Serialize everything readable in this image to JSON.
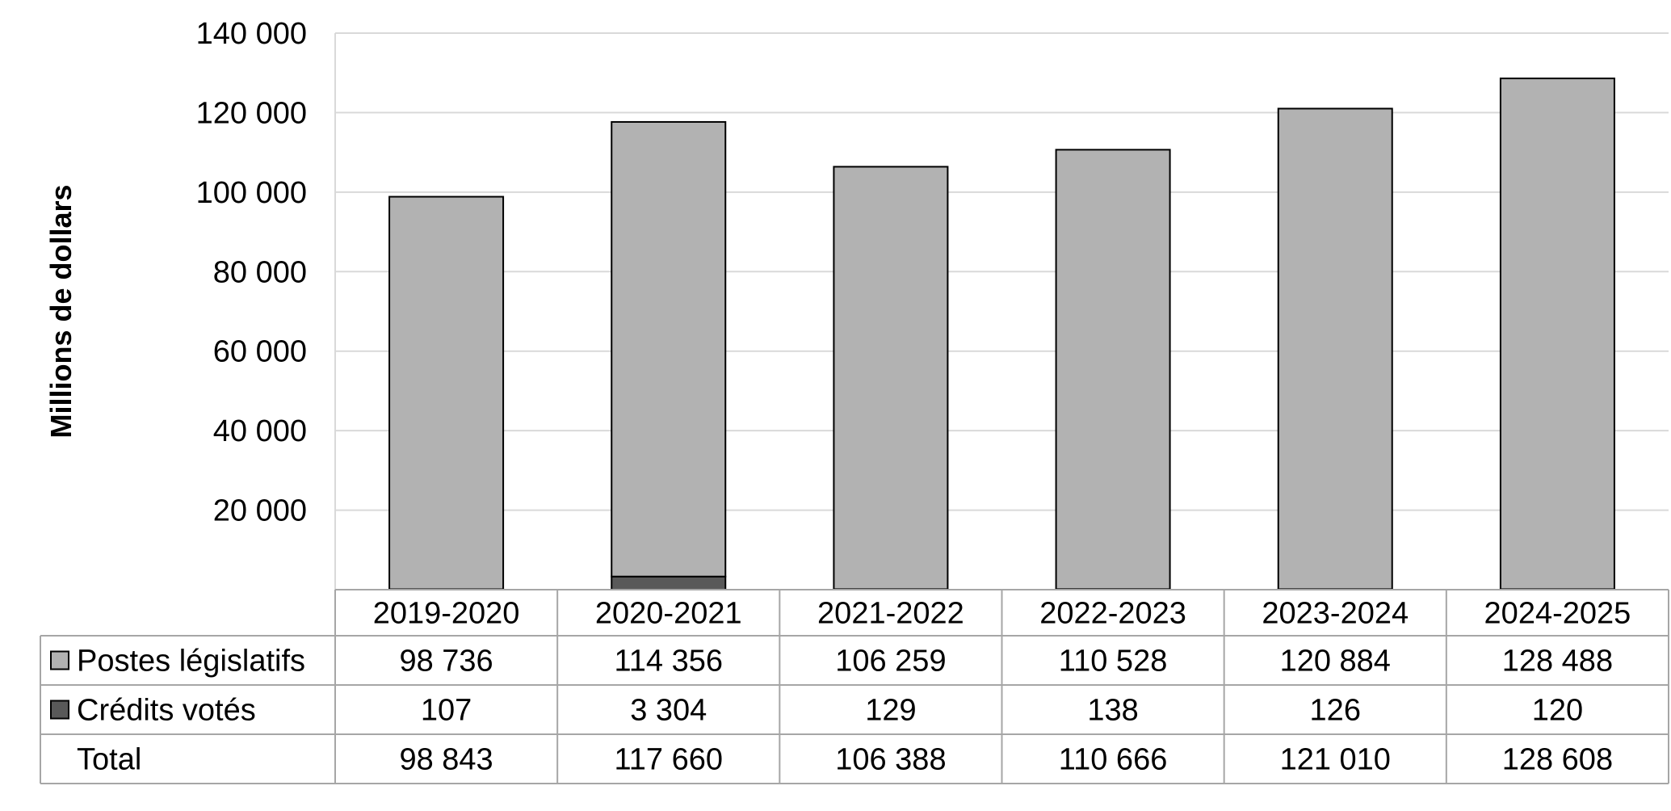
{
  "chart_data": {
    "type": "bar",
    "stacked": true,
    "title": "",
    "xlabel": "",
    "ylabel": "Millions de dollars",
    "ylim": [
      0,
      140000
    ],
    "yticks": [
      "20 000",
      "40 000",
      "60 000",
      "80 000",
      "100 000",
      "120 000",
      "140 000"
    ],
    "ytick_values": [
      20000,
      40000,
      60000,
      80000,
      100000,
      120000,
      140000
    ],
    "grid": true,
    "categories": [
      "2019-2020",
      "2020-2021",
      "2021-2022",
      "2022-2023",
      "2023-2024",
      "2024-2025"
    ],
    "series": [
      {
        "name": "Crédits votés",
        "values": [
          107,
          3304,
          129,
          138,
          126,
          120
        ],
        "labels": [
          "107",
          "3 304",
          "129",
          "138",
          "126",
          "120"
        ],
        "color": "#595959"
      },
      {
        "name": "Postes législatifs",
        "values": [
          98736,
          114356,
          106259,
          110528,
          120884,
          128488
        ],
        "labels": [
          "98 736",
          "114 356",
          "106 259",
          "110 528",
          "120 884",
          "128 488"
        ],
        "color": "#b2b2b2"
      }
    ],
    "total": {
      "name": "Total",
      "values": [
        98843,
        117660,
        106388,
        110666,
        121010,
        128608
      ],
      "labels": [
        "98 843",
        "117 660",
        "106 388",
        "110 666",
        "121 010",
        "128 608"
      ]
    },
    "table_row_order": [
      "Postes législatifs",
      "Crédits votés"
    ]
  }
}
